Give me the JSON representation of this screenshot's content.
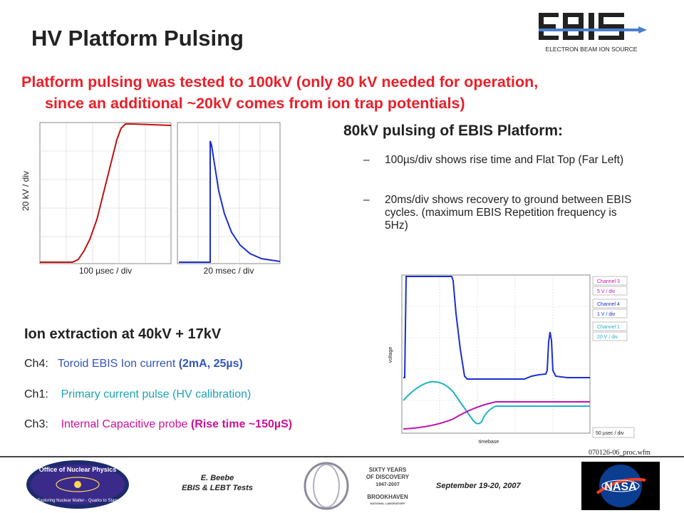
{
  "slide": {
    "title": "HV Platform Pulsing",
    "subtitle_line1": "Platform pulsing was tested to 100kV  (only 80 kV needed for operation,",
    "subtitle_line2": "since an additional ~20kV comes from ion trap potentials)"
  },
  "logos": {
    "ebis_caption": "ELECTRON BEAM ION SOURCE",
    "onp_text": "Office of Nuclear Physics",
    "onp_motto": "Exploring Nuclear Matter - Quarks to Stars",
    "bnl_line1": "SIXTY YEARS",
    "bnl_line2": "OF DISCOVERY",
    "bnl_line3": "1947-2007",
    "bnl_name": "BROOKHAVEN",
    "bnl_sub": "NATIONAL LABORATORY",
    "nasa_text": "NASA"
  },
  "left_scopes": {
    "ylabel": "20 kV / div",
    "xlabel_left": "100 µsec / div",
    "xlabel_mid": "20 msec / div"
  },
  "pulsing": {
    "heading": "80kV pulsing of EBIS Platform:",
    "bullet1": "100µs/div shows rise time and Flat Top (Far Left)",
    "bullet2": "20ms/div shows recovery to ground between EBIS cycles.  (maximum EBIS Repetition frequency is 5Hz)",
    "dash": "–"
  },
  "ion_extraction": {
    "heading": "Ion extraction at 40kV + 17kV",
    "ch4_label": "Ch4:",
    "ch4_text": "Toroid EBIS Ion current ",
    "ch4_value": "(2mA, 25µs)",
    "ch1_label": "Ch1:",
    "ch1_text": "Primary current pulse (HV calibration)",
    "ch3_label": "Ch3:",
    "ch3_text": "Internal Capacitive probe ",
    "ch3_value": "(Rise time ~150µS)"
  },
  "right_scope": {
    "ylabel": "voltage",
    "xlabel": "timebase",
    "channel3": "Channel 3",
    "channel3_scale": "5  V / div",
    "channel4": "Channel 4",
    "channel4_scale": "1  V / div",
    "channel1": "Channel 1",
    "channel1_scale": "20  V / div",
    "timebase_box": "50 µsec / div",
    "filename": "070126-06_proc.wfm"
  },
  "footer": {
    "author": "E. Beebe",
    "event": "EBIS & LEBT Tests",
    "date": "September 19-20, 2007"
  },
  "colors": {
    "title_red": "#e8202a",
    "ch4_blue": "#1a2fd0",
    "ch1_teal": "#1fb3c3",
    "ch3_magenta": "#c014b0",
    "trace_red": "#c01010",
    "trace_blue": "#1a2fd0"
  }
}
